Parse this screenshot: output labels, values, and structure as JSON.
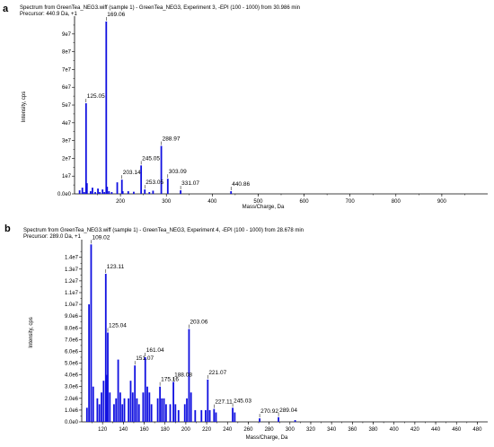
{
  "colors": {
    "bar": "#1010e0",
    "axis": "#000000"
  },
  "chart_data": [
    {
      "panel": "a",
      "type": "bar",
      "title": "Spectrum from GreenTea_NEG3.wiff (sample 1) - GreenTea_NEG3, Experiment 3, -EPI (100 - 1000) from 30.986 min",
      "subtitle": "Precursor: 440.9 Da, +1",
      "xlabel": "Mass/Charge, Da",
      "ylabel": "Intensity, cps",
      "xlim": [
        100,
        1000
      ],
      "ylim": [
        0,
        98000000.0
      ],
      "xticks": [
        "200",
        "300",
        "400",
        "500",
        "600",
        "700",
        "800",
        "900"
      ],
      "yticks": [
        "0.0e0",
        "1e7",
        "2e7",
        "3e7",
        "4e7",
        "5e7",
        "6e7",
        "7e7",
        "8e7",
        "9e7"
      ],
      "peaks": [
        [
          111,
          2000000.0
        ],
        [
          117,
          3500000.0
        ],
        [
          121,
          1000000.0
        ],
        [
          125.05,
          51000000.0
        ],
        [
          127,
          6000000.0
        ],
        [
          135,
          1500000.0
        ],
        [
          139,
          3500000.0
        ],
        [
          145,
          1000000.0
        ],
        [
          151,
          3000000.0
        ],
        [
          155,
          1000000.0
        ],
        [
          161,
          2500000.0
        ],
        [
          165,
          1000000.0
        ],
        [
          169.06,
          97000000.0
        ],
        [
          171,
          4000000.0
        ],
        [
          175,
          1500000.0
        ],
        [
          181,
          1000000.0
        ],
        [
          193,
          6500000.0
        ],
        [
          203.14,
          8000000.0
        ],
        [
          205,
          1500000.0
        ],
        [
          217,
          1500000.0
        ],
        [
          229,
          1200000.0
        ],
        [
          245.05,
          16000000.0
        ],
        [
          253.05,
          2500000.0
        ],
        [
          263,
          1000000.0
        ],
        [
          271,
          1800000.0
        ],
        [
          288.97,
          27000000.0
        ],
        [
          303.09,
          8500000.0
        ],
        [
          331.07,
          2000000.0
        ],
        [
          440.86,
          1500000.0
        ]
      ],
      "labels": [
        {
          "text": "169.06",
          "x": 169.06,
          "y": 97000000.0
        },
        {
          "text": "125.05",
          "x": 125.05,
          "y": 51000000.0
        },
        {
          "text": "288.97",
          "x": 288.97,
          "y": 27000000.0
        },
        {
          "text": "245.05",
          "x": 245.05,
          "y": 16000000.0
        },
        {
          "text": "203.14",
          "x": 203.14,
          "y": 8000000.0
        },
        {
          "text": "303.09",
          "x": 303.09,
          "y": 8500000.0
        },
        {
          "text": "253.05",
          "x": 253.05,
          "y": 2500000.0
        },
        {
          "text": "331.07",
          "x": 331.07,
          "y": 2000000.0
        },
        {
          "text": "440.86",
          "x": 440.86,
          "y": 1500000.0
        }
      ]
    },
    {
      "panel": "b",
      "type": "bar",
      "title": "Spectrum from GreenTea_NEG3.wiff (sample 1) - GreenTea_NEG3, Experiment 4, -EPI (100 - 1000) from 28.678 min",
      "subtitle": "Precursor: 289.0 Da, +1",
      "xlabel": "Mass/Charge, Da",
      "ylabel": "Intensity, cps",
      "xlim": [
        100,
        490
      ],
      "ylim": [
        0,
        15200000.0
      ],
      "xticks": [
        "120",
        "140",
        "160",
        "180",
        "200",
        "220",
        "240",
        "260",
        "280",
        "300",
        "320",
        "340",
        "360",
        "380",
        "400",
        "420",
        "440",
        "460",
        "480"
      ],
      "yticks": [
        "0.0e0",
        "1.0e6",
        "2.0e6",
        "3.0e6",
        "4.0e6",
        "5.0e6",
        "6.0e6",
        "7.0e6",
        "8.0e6",
        "9.0e6",
        "1.0e7",
        "1.1e7",
        "1.2e7",
        "1.3e7",
        "1.4e7"
      ],
      "peaks": [
        [
          105,
          1200000.0
        ],
        [
          107,
          10000000.0
        ],
        [
          109.02,
          15100000.0
        ],
        [
          111,
          3000000.0
        ],
        [
          115,
          2000000.0
        ],
        [
          117,
          1500000.0
        ],
        [
          119,
          2500000.0
        ],
        [
          121,
          3500000.0
        ],
        [
          123.11,
          12600000.0
        ],
        [
          124,
          4000000.0
        ],
        [
          125.04,
          7600000.0
        ],
        [
          127,
          2500000.0
        ],
        [
          131,
          1500000.0
        ],
        [
          133,
          2000000.0
        ],
        [
          135,
          5300000.0
        ],
        [
          137,
          2500000.0
        ],
        [
          139,
          1500000.0
        ],
        [
          141,
          2000000.0
        ],
        [
          145,
          2000000.0
        ],
        [
          147,
          3500000.0
        ],
        [
          149,
          2500000.0
        ],
        [
          151.07,
          4800000.0
        ],
        [
          153,
          2000000.0
        ],
        [
          155,
          1500000.0
        ],
        [
          159,
          2500000.0
        ],
        [
          161.04,
          5500000.0
        ],
        [
          163,
          3000000.0
        ],
        [
          165,
          2500000.0
        ],
        [
          167,
          1500000.0
        ],
        [
          173,
          2000000.0
        ],
        [
          175.16,
          3000000.0
        ],
        [
          177,
          2000000.0
        ],
        [
          179,
          2000000.0
        ],
        [
          181,
          1500000.0
        ],
        [
          185,
          1500000.0
        ],
        [
          188.08,
          3400000.0
        ],
        [
          190,
          1500000.0
        ],
        [
          193,
          1000000.0
        ],
        [
          199,
          1500000.0
        ],
        [
          201,
          2000000.0
        ],
        [
          203.06,
          7900000.0
        ],
        [
          205,
          2500000.0
        ],
        [
          209,
          1000000.0
        ],
        [
          215,
          1000000.0
        ],
        [
          219,
          1000000.0
        ],
        [
          221.07,
          3600000.0
        ],
        [
          223,
          1000000.0
        ],
        [
          227.11,
          1100000.0
        ],
        [
          229,
          800000.0
        ],
        [
          245.03,
          1200000.0
        ],
        [
          247,
          800000.0
        ],
        [
          270.92,
          300000.0
        ],
        [
          289.04,
          400000.0
        ],
        [
          305,
          150000.0
        ]
      ],
      "labels": [
        {
          "text": "109.02",
          "x": 109.02,
          "y": 15100000.0
        },
        {
          "text": "123.11",
          "x": 123.11,
          "y": 12600000.0
        },
        {
          "text": "125.04",
          "x": 125.04,
          "y": 7600000.0
        },
        {
          "text": "151.07",
          "x": 151.07,
          "y": 4800000.0
        },
        {
          "text": "161.04",
          "x": 161.04,
          "y": 5500000.0
        },
        {
          "text": "203.06",
          "x": 203.06,
          "y": 7900000.0
        },
        {
          "text": "188.08",
          "x": 188.08,
          "y": 3400000.0
        },
        {
          "text": "175.16",
          "x": 175.16,
          "y": 3000000.0
        },
        {
          "text": "221.07",
          "x": 221.07,
          "y": 3600000.0
        },
        {
          "text": "227.11",
          "x": 227.11,
          "y": 1100000.0
        },
        {
          "text": "245.03",
          "x": 245.03,
          "y": 1200000.0
        },
        {
          "text": "270.92",
          "x": 270.92,
          "y": 300000.0
        },
        {
          "text": "289.04",
          "x": 289.04,
          "y": 400000.0
        }
      ]
    }
  ]
}
